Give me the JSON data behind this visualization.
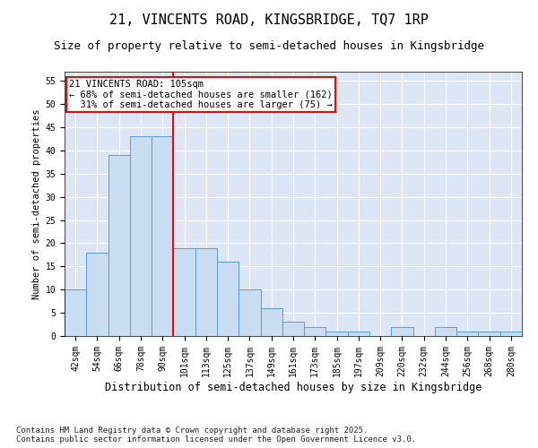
{
  "title": "21, VINCENTS ROAD, KINGSBRIDGE, TQ7 1RP",
  "subtitle": "Size of property relative to semi-detached houses in Kingsbridge",
  "xlabel": "Distribution of semi-detached houses by size in Kingsbridge",
  "ylabel": "Number of semi-detached properties",
  "categories": [
    "42sqm",
    "54sqm",
    "66sqm",
    "78sqm",
    "90sqm",
    "101sqm",
    "113sqm",
    "125sqm",
    "137sqm",
    "149sqm",
    "161sqm",
    "173sqm",
    "185sqm",
    "197sqm",
    "209sqm",
    "220sqm",
    "232sqm",
    "244sqm",
    "256sqm",
    "268sqm",
    "280sqm"
  ],
  "values": [
    10,
    18,
    39,
    43,
    43,
    19,
    19,
    16,
    10,
    6,
    3,
    2,
    1,
    1,
    0,
    2,
    0,
    2,
    1,
    1,
    1
  ],
  "bar_color": "#c9ddf2",
  "bar_edge_color": "#5b9bd5",
  "vline_color": "red",
  "vline_index": 5,
  "annotation_text": "21 VINCENTS ROAD: 105sqm\n← 68% of semi-detached houses are smaller (162)\n  31% of semi-detached houses are larger (75) →",
  "annotation_box_color": "white",
  "annotation_box_edge_color": "red",
  "ylim": [
    0,
    57
  ],
  "yticks": [
    0,
    5,
    10,
    15,
    20,
    25,
    30,
    35,
    40,
    45,
    50,
    55
  ],
  "grid_color": "white",
  "background_color": "#dce6f5",
  "footer_text": "Contains HM Land Registry data © Crown copyright and database right 2025.\nContains public sector information licensed under the Open Government Licence v3.0.",
  "title_fontsize": 11,
  "subtitle_fontsize": 9,
  "tick_fontsize": 7,
  "ylabel_fontsize": 7.5,
  "xlabel_fontsize": 8.5,
  "annotation_fontsize": 7.5,
  "footer_fontsize": 6.5
}
